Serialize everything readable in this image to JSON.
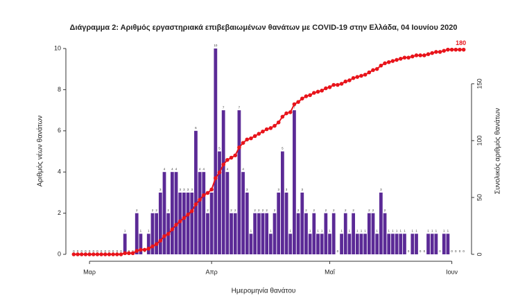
{
  "chart_data": {
    "type": "bar",
    "title": "Διάγραμμα 2: Αριθμός εργαστηριακά επιβεβαιωμένων θανάτων με COVID-19 στην Ελλάδα, 04 Ιουνίου 2020",
    "x_label": "Ημερομηνία θανάτου",
    "y_label": "Αριθμός νέων θανάτων",
    "y2_label": "Συνολικός αριθμός θανάτων",
    "x": [
      0,
      1,
      2,
      3,
      4,
      5,
      6,
      7,
      8,
      9,
      10,
      11,
      12,
      13,
      14,
      15,
      16,
      17,
      18,
      19,
      20,
      21,
      22,
      23,
      24,
      25,
      26,
      27,
      28,
      29,
      30,
      31,
      32,
      33,
      34,
      35,
      36,
      37,
      38,
      39,
      40,
      41,
      42,
      43,
      44,
      45,
      46,
      47,
      48,
      49,
      50,
      51,
      52,
      53,
      54,
      55,
      56,
      57,
      58,
      59,
      60,
      61,
      62,
      63,
      64,
      65,
      66,
      67,
      68,
      69,
      70,
      71,
      72,
      73,
      74,
      75,
      76,
      77,
      78,
      79,
      80,
      81,
      82,
      83,
      84,
      85,
      86,
      87,
      88,
      89,
      90,
      91,
      92,
      93,
      94,
      95,
      96,
      97,
      98,
      99
    ],
    "xlim": [
      -2,
      101
    ],
    "xticks": [
      {
        "value": 4,
        "label": "Μαρ"
      },
      {
        "value": 35,
        "label": "Απρ"
      },
      {
        "value": 65,
        "label": "Μαΐ"
      },
      {
        "value": 96,
        "label": "Ιουν"
      }
    ],
    "ylim": [
      0,
      10
    ],
    "yticks": [
      0,
      2,
      4,
      6,
      8,
      10
    ],
    "y2lim": [
      0,
      181
    ],
    "y2ticks": [
      0,
      50,
      100,
      150
    ],
    "series": [
      {
        "type": "bar",
        "color": "#5b2a96",
        "values": [
          0,
          0,
          0,
          0,
          0,
          0,
          0,
          0,
          0,
          0,
          0,
          0,
          0,
          1,
          0,
          0,
          2,
          1,
          0,
          1,
          2,
          2,
          3,
          4,
          2,
          4,
          4,
          3,
          3,
          3,
          3,
          6,
          4,
          4,
          2,
          3,
          10,
          5,
          7,
          4,
          2,
          2,
          7,
          4,
          3,
          1,
          2,
          2,
          2,
          2,
          1,
          2,
          3,
          5,
          3,
          1,
          7,
          2,
          3,
          2,
          1,
          2,
          1,
          1,
          2,
          1,
          2,
          0,
          1,
          2,
          1,
          2,
          1,
          1,
          1,
          2,
          2,
          1,
          3,
          2,
          1,
          1,
          1,
          1,
          1,
          0,
          1,
          1,
          0,
          0,
          1,
          1,
          1,
          0,
          1,
          1,
          0,
          0,
          0,
          0
        ]
      },
      {
        "type": "line",
        "axis": "y2",
        "color": "#e8141b",
        "values": [
          0,
          0,
          0,
          0,
          0,
          0,
          0,
          0,
          0,
          0,
          0,
          0,
          0,
          1,
          1,
          1,
          3,
          4,
          4,
          5,
          7,
          9,
          12,
          16,
          18,
          22,
          26,
          29,
          32,
          35,
          38,
          44,
          48,
          52,
          54,
          57,
          67,
          72,
          79,
          83,
          85,
          87,
          94,
          98,
          101,
          102,
          104,
          106,
          108,
          110,
          111,
          113,
          116,
          121,
          124,
          125,
          132,
          134,
          137,
          139,
          140,
          142,
          143,
          144,
          146,
          147,
          149,
          149,
          150,
          152,
          153,
          155,
          156,
          157,
          158,
          160,
          162,
          163,
          166,
          168,
          169,
          170,
          171,
          172,
          173,
          173,
          174,
          175,
          175,
          175,
          176,
          177,
          178,
          178,
          179,
          180,
          180,
          180,
          180,
          180
        ]
      }
    ]
  }
}
